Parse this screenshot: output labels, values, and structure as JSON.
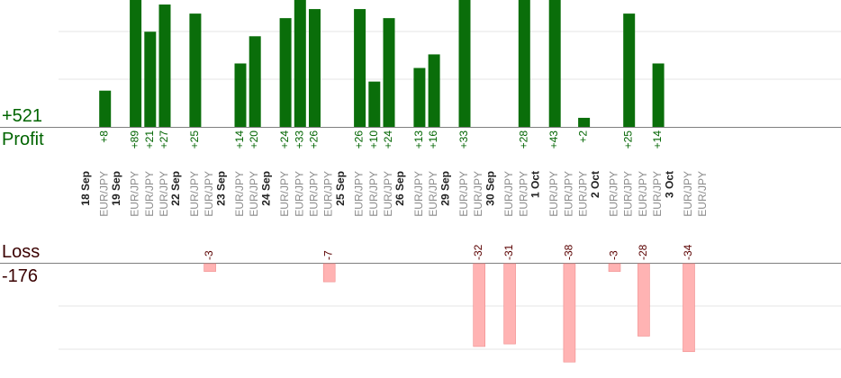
{
  "summary": {
    "profit_total": "+521",
    "profit_label": "Profit",
    "loss_label": "Loss",
    "loss_total": "-176"
  },
  "colors": {
    "profit_bar": "#0a6e0a",
    "profit_text": "#006400",
    "loss_bar": "#ffb3b3",
    "loss_text": "#5a0000",
    "grid": "#e6e6e6",
    "axis": "#7f7f7f",
    "pair_text": "#8c8c8c",
    "date_text": "#222222"
  },
  "chart_data": {
    "type": "bar",
    "profit_axis_max": 28,
    "loss_axis_min": -40,
    "days": [
      {
        "date": "18 Sep",
        "trades": [
          {
            "pair": "EUR/JPY",
            "value": 8,
            "label": "+8"
          }
        ]
      },
      {
        "date": "19 Sep",
        "trades": [
          {
            "pair": "EUR/JPY",
            "value": 89,
            "label": "+89"
          },
          {
            "pair": "EUR/JPY",
            "value": 21,
            "label": "+21"
          },
          {
            "pair": "EUR/JPY",
            "value": 27,
            "label": "+27"
          }
        ]
      },
      {
        "date": "22 Sep",
        "trades": [
          {
            "pair": "EUR/JPY",
            "value": 25,
            "label": "+25"
          },
          {
            "pair": "EUR/JPY",
            "value": -3,
            "label": "-3"
          }
        ]
      },
      {
        "date": "23 Sep",
        "trades": [
          {
            "pair": "EUR/JPY",
            "value": 14,
            "label": "+14"
          },
          {
            "pair": "EUR/JPY",
            "value": 20,
            "label": "+20"
          }
        ]
      },
      {
        "date": "24 Sep",
        "trades": [
          {
            "pair": "EUR/JPY",
            "value": 24,
            "label": "+24"
          },
          {
            "pair": "EUR/JPY",
            "value": 33,
            "label": "+33"
          },
          {
            "pair": "EUR/JPY",
            "value": 26,
            "label": "+26"
          },
          {
            "pair": "EUR/JPY",
            "value": -7,
            "label": "-7"
          }
        ]
      },
      {
        "date": "25 Sep",
        "trades": [
          {
            "pair": "EUR/JPY",
            "value": 26,
            "label": "+26"
          },
          {
            "pair": "EUR/JPY",
            "value": 10,
            "label": "+10"
          },
          {
            "pair": "EUR/JPY",
            "value": 24,
            "label": "+24"
          }
        ]
      },
      {
        "date": "26 Sep",
        "trades": [
          {
            "pair": "EUR/JPY",
            "value": 13,
            "label": "+13"
          },
          {
            "pair": "EUR/JPY",
            "value": 16,
            "label": "+16"
          }
        ]
      },
      {
        "date": "29 Sep",
        "trades": [
          {
            "pair": "EUR/JPY",
            "value": 33,
            "label": "+33"
          },
          {
            "pair": "EUR/JPY",
            "value": -32,
            "label": "-32"
          }
        ]
      },
      {
        "date": "30 Sep",
        "trades": [
          {
            "pair": "EUR/JPY",
            "value": -31,
            "label": "-31"
          },
          {
            "pair": "EUR/JPY",
            "value": 28,
            "label": "+28"
          }
        ]
      },
      {
        "date": "1 Oct",
        "trades": [
          {
            "pair": "EUR/JPY",
            "value": 43,
            "label": "+43"
          },
          {
            "pair": "EUR/JPY",
            "value": -38,
            "label": "-38"
          },
          {
            "pair": "EUR/JPY",
            "value": 2,
            "label": "+2"
          }
        ]
      },
      {
        "date": "2 Oct",
        "trades": [
          {
            "pair": "EUR/JPY",
            "value": -3,
            "label": "-3"
          },
          {
            "pair": "EUR/JPY",
            "value": 25,
            "label": "+25"
          },
          {
            "pair": "EUR/JPY",
            "value": -28,
            "label": "-28"
          },
          {
            "pair": "EUR/JPY",
            "value": 14,
            "label": "+14"
          }
        ]
      },
      {
        "date": "3 Oct",
        "trades": [
          {
            "pair": "EUR/JPY",
            "value": -34,
            "label": "-34"
          },
          {
            "pair": "EUR/JPY",
            "value": 0,
            "label": ""
          }
        ]
      }
    ]
  }
}
